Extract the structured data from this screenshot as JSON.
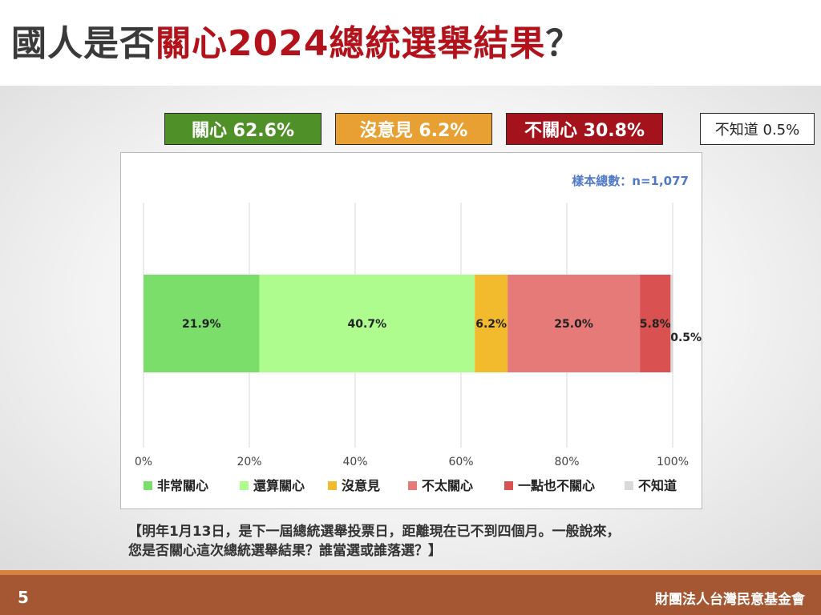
{
  "title": {
    "prefix": "國人是否",
    "highlight": "關心2024總統選舉結果",
    "suffix": "？"
  },
  "summary_boxes": [
    {
      "label": "關心 62.6%",
      "bg": "#4f9128",
      "fg": "#ffffff"
    },
    {
      "label": "沒意見 6.2%",
      "bg": "#e8a033",
      "fg": "#ffffff"
    },
    {
      "label": "不關心 30.8%",
      "bg": "#a4121c",
      "fg": "#ffffff"
    },
    {
      "label": "不知道 0.5%",
      "bg": "#ffffff",
      "fg": "#222222"
    }
  ],
  "chart_data": {
    "type": "bar",
    "orientation": "horizontal-stacked",
    "sample_note": "樣本總數：n=1,077",
    "x_ticks": [
      "0%",
      "20%",
      "40%",
      "60%",
      "80%",
      "100%"
    ],
    "xlim": [
      0,
      100
    ],
    "grid": true,
    "legend_position": "bottom",
    "series": [
      {
        "name": "非常關心",
        "value": 21.9,
        "label": "21.9%",
        "color": "#7bdd6a"
      },
      {
        "name": "還算關心",
        "value": 40.7,
        "label": "40.7%",
        "color": "#aefc8e"
      },
      {
        "name": "沒意見",
        "value": 6.2,
        "label": "6.2%",
        "color": "#f1bb2d"
      },
      {
        "name": "不太關心",
        "value": 25.0,
        "label": "25.0%",
        "color": "#e67a78"
      },
      {
        "name": "一點也不關心",
        "value": 5.8,
        "label": "5.8%",
        "color": "#da5152"
      },
      {
        "name": "不知道",
        "value": 0.5,
        "label": "0.5%",
        "color": "#d9d9d9"
      }
    ]
  },
  "question_note": {
    "line1": "【明年1月13日，是下一屆總統選舉投票日，距離現在已不到四個月。一般說來，",
    "line2": "您是否關心這次總統選舉結果？誰當選或誰落選？】"
  },
  "footer": {
    "page_number": "5",
    "organization": "財團法人台灣民意基金會"
  }
}
